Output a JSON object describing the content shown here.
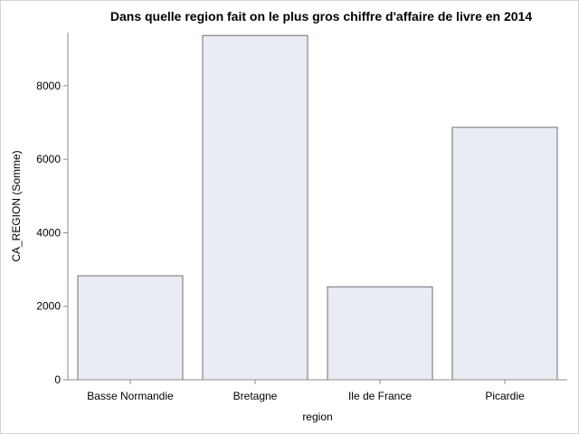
{
  "chart_data": {
    "type": "bar",
    "title": "Dans quelle region fait on le plus gros chiffre d'affaire de livre en 2014",
    "xlabel": "region",
    "ylabel": "CA_REGION (Somme)",
    "categories": [
      "Basse Normandie",
      "Bretagne",
      "Ile de France",
      "Picardie"
    ],
    "values": [
      2830,
      9370,
      2530,
      6870
    ],
    "ylim": [
      0,
      9450
    ],
    "yticks": [
      0,
      2000,
      4000,
      6000,
      8000
    ],
    "ytick_labels": [
      "0",
      "2000",
      "4000",
      "6000",
      "8000"
    ],
    "grid": false,
    "legend": "none",
    "colors": {
      "bar_fill": "#e9edf3",
      "bar_stroke": "#6b6f78",
      "axis": "#8c8c8c",
      "frame": "#d3d3d3"
    }
  }
}
